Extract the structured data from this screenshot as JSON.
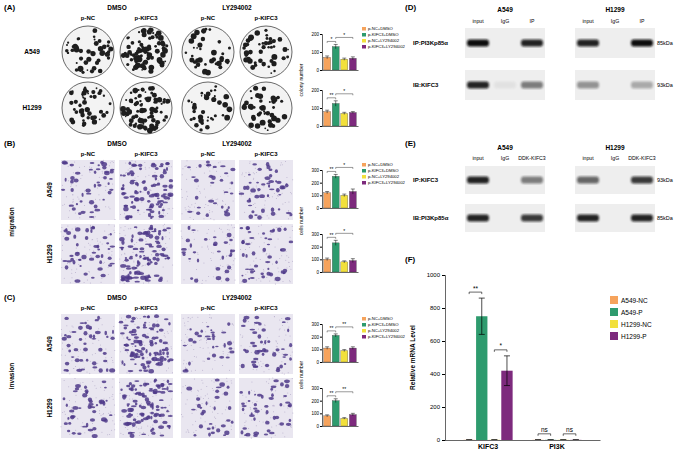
{
  "chart_data": [
    {
      "type": "bar",
      "panel": "(A)",
      "ylabel": "colony number",
      "images": {
        "groups": [
          "DMSO",
          "LY294002"
        ],
        "columns": [
          "p-NC",
          "p-KIFC3",
          "p-NC",
          "p-KIFC3"
        ]
      },
      "categories": [
        "p-NC+DMSO",
        "p-KIFC3+DMSO",
        "p-NC+LY294002",
        "p-KIFC3+LY294002"
      ],
      "colors": [
        "#f6a35c",
        "#2e9b6e",
        "#f2e03c",
        "#7d2a7d"
      ],
      "legend": "top-right",
      "tick_labels": "y",
      "ylim": [
        0,
        200
      ],
      "yticks": [
        0,
        100,
        200
      ],
      "rows": [
        {
          "name": "A549",
          "values": [
            70,
            130,
            60,
            65
          ],
          "errors": [
            8,
            12,
            6,
            8
          ],
          "annotations": [
            {
              "text": "*",
              "between": [
                0,
                1
              ]
            },
            {
              "text": "*",
              "between": [
                1,
                3
              ]
            }
          ]
        },
        {
          "name": "H1299",
          "values": [
            80,
            125,
            70,
            75
          ],
          "errors": [
            8,
            15,
            6,
            5
          ],
          "annotations": [
            {
              "text": "**",
              "between": [
                0,
                1
              ]
            },
            {
              "text": "*",
              "between": [
                1,
                3
              ]
            }
          ]
        }
      ]
    },
    {
      "type": "bar",
      "panel": "(B)",
      "ylabel": "cells number",
      "side_label": "migration",
      "images": {
        "groups": [
          "DMSO",
          "LY294002"
        ],
        "columns": [
          "p-NC",
          "p-KIFC3",
          "p-NC",
          "p-KIFC3"
        ]
      },
      "categories": [
        "p-NC+DMSO",
        "p-KIFC3+DMSO",
        "p-NC+LY294002",
        "p-KIFC3+LY294002"
      ],
      "colors": [
        "#f6a35c",
        "#2e9b6e",
        "#f2e03c",
        "#7d2a7d"
      ],
      "legend": "top-right",
      "tick_labels": "y",
      "ylim": [
        0,
        300
      ],
      "yticks": [
        0,
        100,
        200,
        300
      ],
      "rows": [
        {
          "name": "A549",
          "values": [
            120,
            250,
            100,
            130
          ],
          "errors": [
            10,
            15,
            10,
            20
          ],
          "annotations": [
            {
              "text": "**",
              "between": [
                0,
                1
              ]
            },
            {
              "text": "*",
              "between": [
                1,
                3
              ]
            }
          ]
        },
        {
          "name": "H1299",
          "values": [
            100,
            230,
            80,
            90
          ],
          "errors": [
            10,
            20,
            8,
            15
          ],
          "annotations": [
            {
              "text": "**",
              "between": [
                0,
                1
              ]
            },
            {
              "text": "*",
              "between": [
                1,
                3
              ]
            }
          ]
        }
      ]
    },
    {
      "type": "bar",
      "panel": "(C)",
      "ylabel": "cells number",
      "side_label": "invasion",
      "images": {
        "groups": [
          "DMSO",
          "LY294002"
        ],
        "columns": [
          "p-NC",
          "p-KIFC3",
          "p-NC",
          "p-KIFC3"
        ]
      },
      "categories": [
        "p-NC+DMSO",
        "p-KIFC3+DMSO",
        "p-NC+LY294002",
        "p-KIFC3+LY294002"
      ],
      "colors": [
        "#f6a35c",
        "#2e9b6e",
        "#f2e03c",
        "#7d2a7d"
      ],
      "legend": "top-right",
      "tick_labels": "y",
      "ylim": [
        0,
        300
      ],
      "yticks": [
        0,
        100,
        200,
        300
      ],
      "rows": [
        {
          "name": "A549",
          "values": [
            110,
            210,
            90,
            110
          ],
          "errors": [
            10,
            12,
            8,
            10
          ],
          "annotations": [
            {
              "text": "**",
              "between": [
                0,
                1
              ]
            },
            {
              "text": "**",
              "between": [
                1,
                3
              ]
            }
          ]
        },
        {
          "name": "H1299",
          "values": [
            80,
            200,
            60,
            90
          ],
          "errors": [
            8,
            15,
            6,
            10
          ],
          "annotations": [
            {
              "text": "**",
              "between": [
                0,
                1
              ]
            },
            {
              "text": "**",
              "between": [
                1,
                3
              ]
            }
          ]
        }
      ]
    },
    {
      "type": "bar",
      "panel": "(F)",
      "ylabel": "Relative mRNA Level",
      "categories": [
        "KIFC3",
        "PI3K"
      ],
      "ylim": [
        0,
        1000
      ],
      "yticks": [
        0,
        200,
        400,
        600,
        800,
        1000
      ],
      "legend": "right",
      "series": [
        {
          "name": "A549-NC",
          "color": "#f6a35c",
          "values": [
            1,
            1
          ],
          "errors": [
            0,
            0
          ]
        },
        {
          "name": "A549-P",
          "color": "#2e9b6e",
          "values": [
            750,
            1
          ],
          "errors": [
            110,
            0.1
          ]
        },
        {
          "name": "H1299-NC",
          "color": "#f2e03c",
          "values": [
            1,
            1
          ],
          "errors": [
            0,
            0
          ]
        },
        {
          "name": "H1299-P",
          "color": "#7d2a7d",
          "values": [
            420,
            0.9
          ],
          "errors": [
            90,
            0.1
          ]
        }
      ],
      "annotations": [
        {
          "text": "**",
          "category": 0,
          "between": [
            0,
            1
          ]
        },
        {
          "text": "*",
          "category": 0,
          "between": [
            2,
            3
          ]
        },
        {
          "text": "ns",
          "category": 1,
          "between": [
            0,
            1
          ]
        },
        {
          "text": "ns",
          "category": 1,
          "between": [
            2,
            3
          ]
        }
      ]
    }
  ],
  "blots": [
    {
      "panel": "(D)",
      "cells": [
        "A549",
        "H1299"
      ],
      "lanes": [
        "input",
        "IgG",
        "IP"
      ],
      "rows": [
        {
          "label": "IP:PI3Kp85α",
          "kda": "85kDa"
        },
        {
          "label": "IB:KIFC3",
          "kda": "93kDa"
        }
      ]
    },
    {
      "panel": "(E)",
      "cells": [
        "A549",
        "H1299"
      ],
      "lanes": [
        "input",
        "IgG",
        "DDK-KIFC3"
      ],
      "rows": [
        {
          "label": "IP:KIFC3",
          "kda": "93kDa"
        },
        {
          "label": "IB:PI3Kp85α",
          "kda": "85kDa"
        }
      ]
    }
  ]
}
